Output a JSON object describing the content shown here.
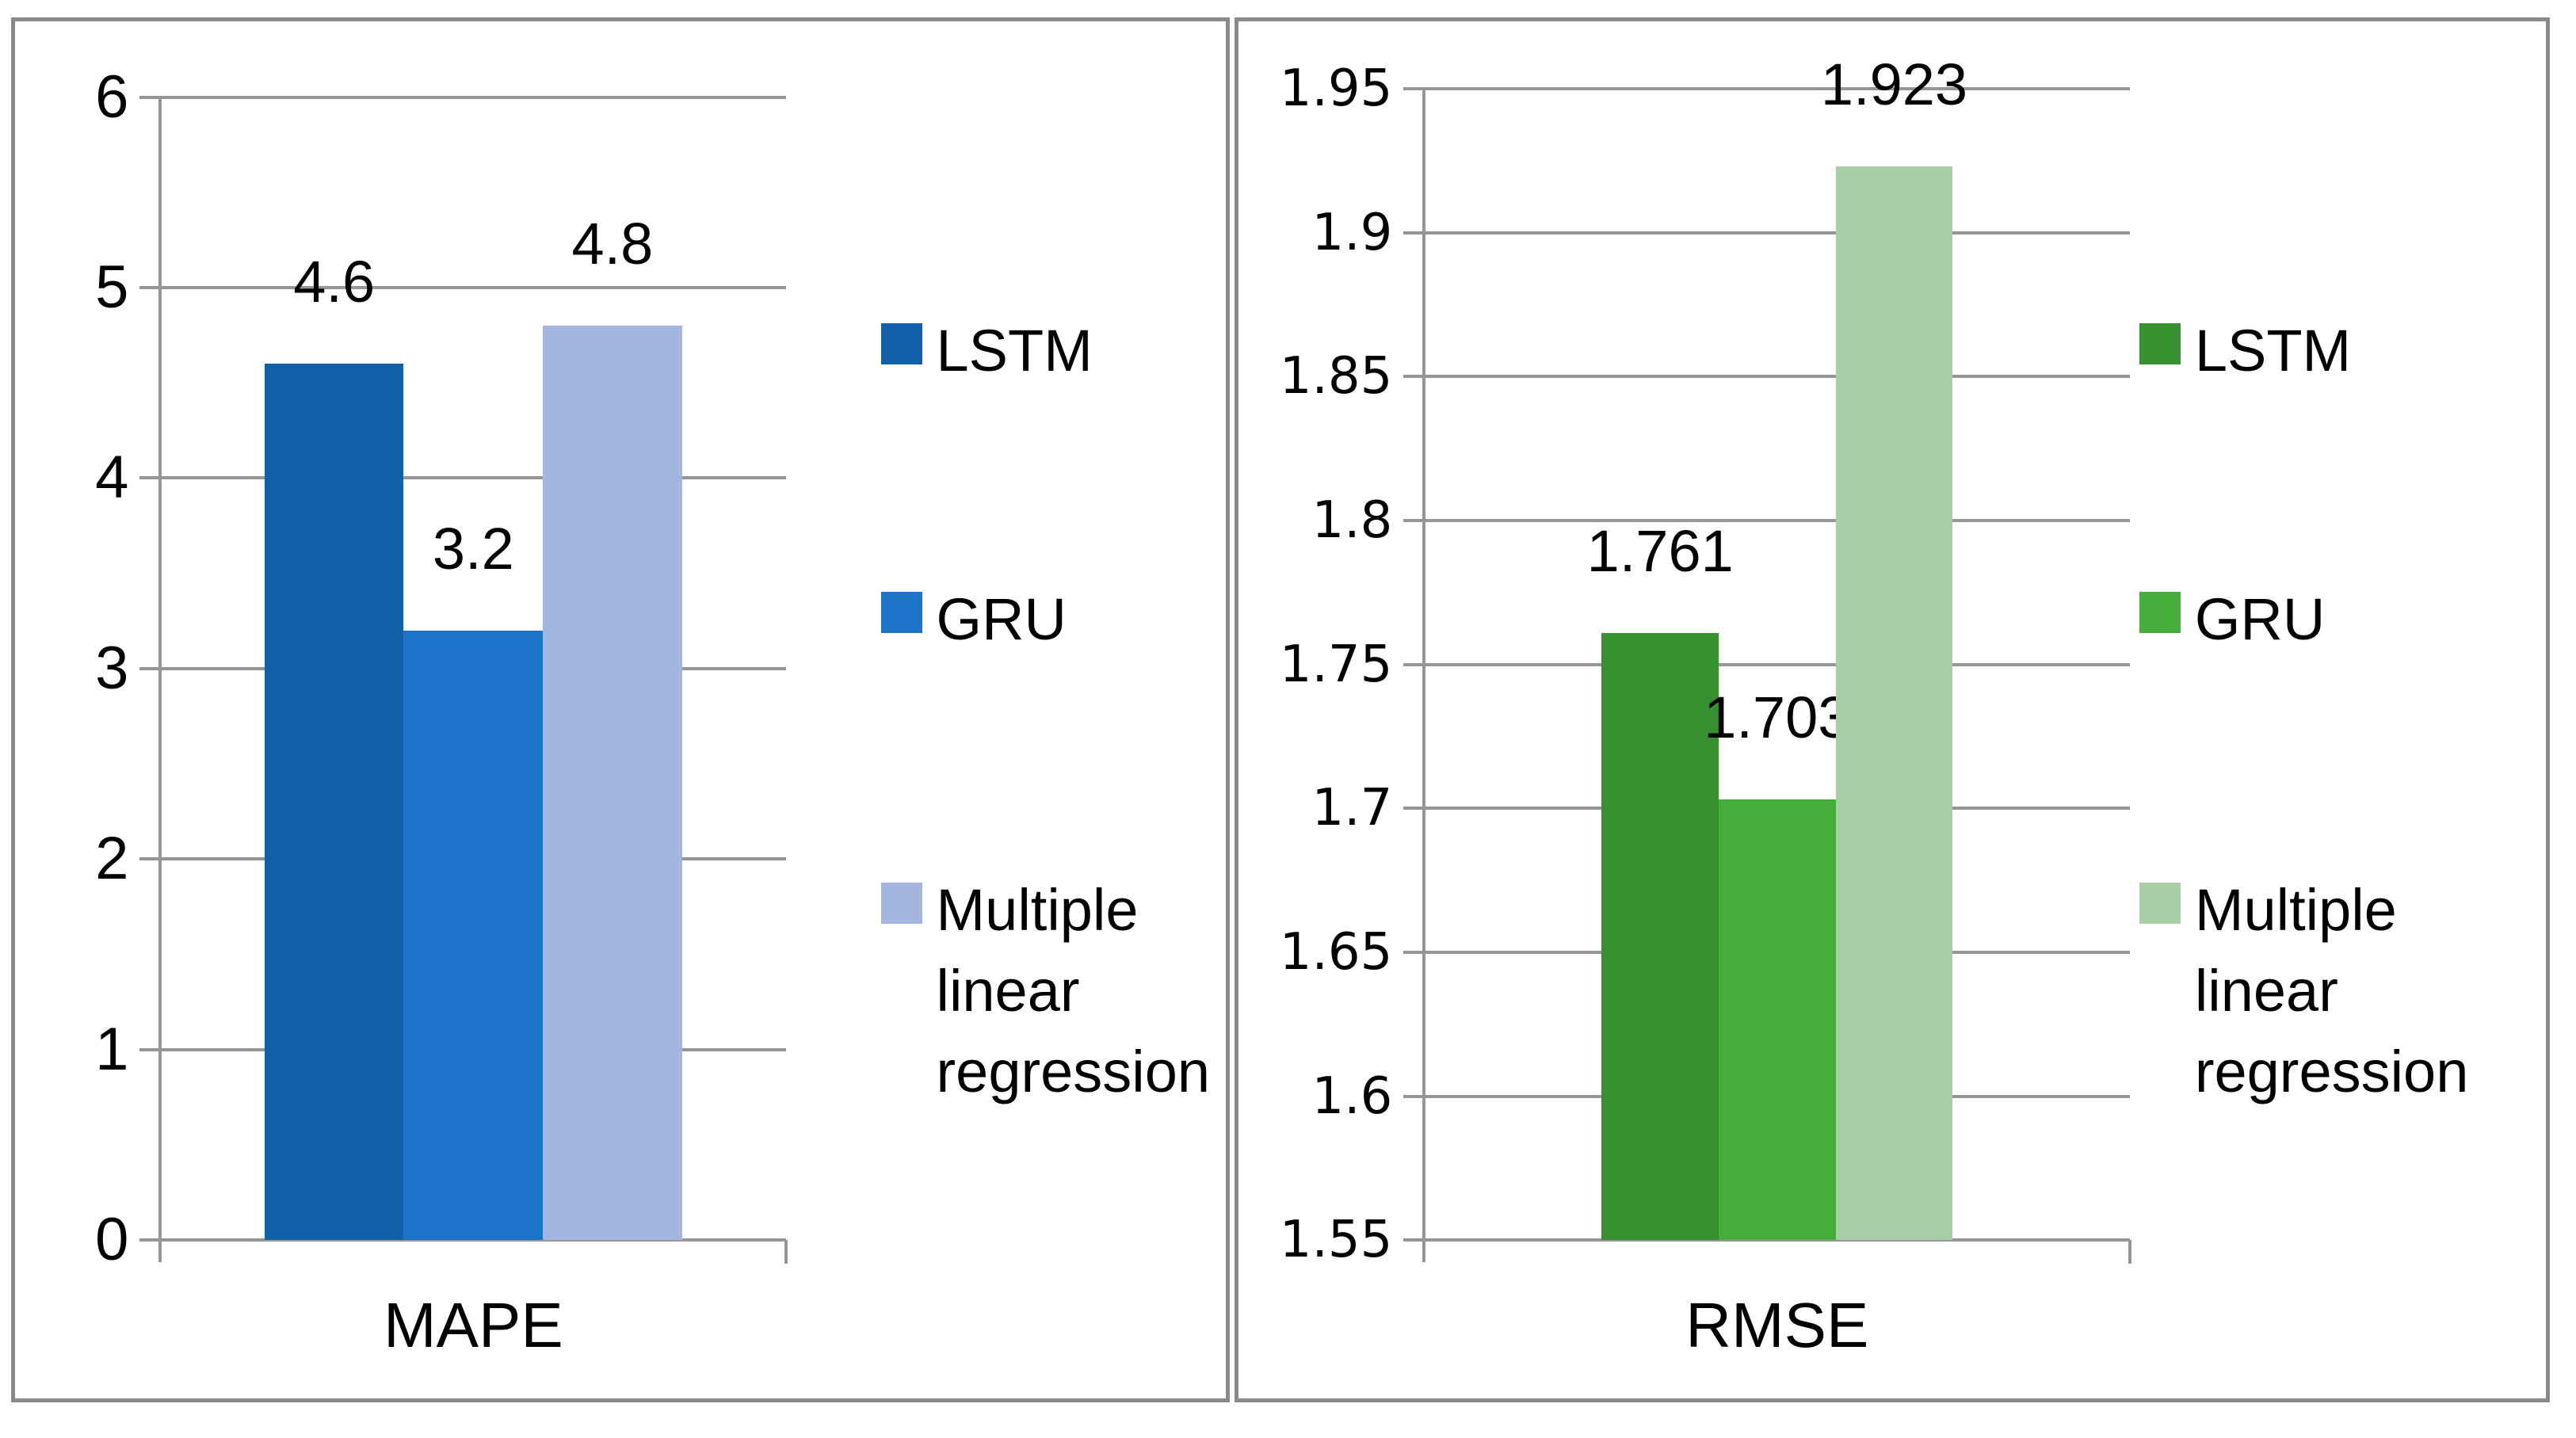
{
  "page": {
    "background": "#ffffff",
    "panel_border_color": "#8a8a8a",
    "axis_color": "#969696"
  },
  "chart_data": [
    {
      "type": "bar",
      "title": "",
      "categories": [
        "MAPE"
      ],
      "xlabel": "MAPE",
      "ylabel": "",
      "ylim": [
        0,
        6
      ],
      "ytick_step": 1,
      "ytick_labels": [
        "6",
        "5",
        "4",
        "3",
        "2",
        "1",
        "0"
      ],
      "grid": true,
      "legend_position": "right",
      "series": [
        {
          "name": "LSTM",
          "values": [
            4.6
          ],
          "data_labels": [
            "4.6"
          ],
          "color": "#1160A8"
        },
        {
          "name": "GRU",
          "values": [
            3.2
          ],
          "data_labels": [
            "3.2"
          ],
          "color": "#1B74C9"
        },
        {
          "name": "Multiple linear regression",
          "values": [
            4.8
          ],
          "data_labels": [
            "4.8"
          ],
          "color": "#A4B6DF"
        }
      ]
    },
    {
      "type": "bar",
      "title": "",
      "categories": [
        "RMSE"
      ],
      "xlabel": "RMSE",
      "ylabel": "",
      "ylim": [
        1.55,
        1.95
      ],
      "ytick_step": 0.05,
      "ytick_labels": [
        "1.95",
        "1.9",
        "1.85",
        "1.8",
        "1.75",
        "1.7",
        "1.65",
        "1.6",
        "1.55"
      ],
      "grid": true,
      "legend_position": "right",
      "series": [
        {
          "name": "LSTM",
          "values": [
            1.761
          ],
          "data_labels": [
            "1.761"
          ],
          "color": "#36902F"
        },
        {
          "name": "GRU",
          "values": [
            1.703
          ],
          "data_labels": [
            "1.703"
          ],
          "color": "#46AE3A"
        },
        {
          "name": "Multiple linear regression",
          "values": [
            1.923
          ],
          "data_labels": [
            "1.923"
          ],
          "color": "#A7CEA4"
        }
      ]
    }
  ]
}
